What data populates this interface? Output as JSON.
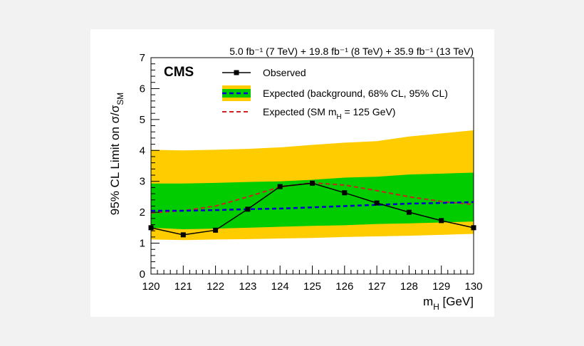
{
  "chart_data": {
    "type": "line",
    "title": "",
    "header": "5.0 fb⁻¹ (7 TeV) + 19.8 fb⁻¹ (8 TeV) + 35.9 fb⁻¹ (13 TeV)",
    "experiment_label": "CMS",
    "xlabel": "m_H [GeV]",
    "ylabel": "95% CL Limit on σ/σ_SM",
    "xlim": [
      120,
      130
    ],
    "ylim": [
      0,
      7
    ],
    "xticks": [
      120,
      121,
      122,
      123,
      124,
      125,
      126,
      127,
      128,
      129,
      130
    ],
    "yticks": [
      0,
      1,
      2,
      3,
      4,
      5,
      6,
      7
    ],
    "grid": false,
    "legend_position": "top",
    "legend": [
      {
        "label": "Observed",
        "style": "line-with-square-markers",
        "color": "#000000"
      },
      {
        "label": "Expected (background, 68% CL, 95% CL)",
        "style": "dashed-with-bands",
        "color": "#0000cc",
        "band68_color": "#00cc00",
        "band95_color": "#ffcc00"
      },
      {
        "label": "Expected (SM m_H = 125 GeV)",
        "style": "dashed",
        "color": "#cc2222"
      }
    ],
    "x": [
      120,
      121,
      122,
      123,
      124,
      125,
      126,
      127,
      128,
      129,
      130
    ],
    "series": [
      {
        "name": "Observed",
        "values": [
          1.5,
          1.27,
          1.42,
          2.1,
          2.83,
          2.94,
          2.63,
          2.3,
          2.0,
          1.73,
          1.5
        ]
      },
      {
        "name": "Expected (background, 68% CL, 95% CL)",
        "values": [
          2.05,
          2.05,
          2.07,
          2.1,
          2.12,
          2.16,
          2.2,
          2.24,
          2.28,
          2.3,
          2.33
        ]
      },
      {
        "name": "Expected (SM m_H = 125 GeV)",
        "values": [
          1.98,
          2.05,
          2.2,
          2.5,
          2.82,
          2.95,
          2.88,
          2.7,
          2.5,
          2.35,
          2.25
        ]
      }
    ],
    "bands": {
      "band95_upper": [
        4.02,
        4.0,
        4.02,
        4.05,
        4.1,
        4.18,
        4.25,
        4.3,
        4.45,
        4.55,
        4.65
      ],
      "band68_upper": [
        2.93,
        2.93,
        2.95,
        2.98,
        3.0,
        3.05,
        3.12,
        3.15,
        3.22,
        3.25,
        3.28
      ],
      "band68_lower": [
        1.5,
        1.45,
        1.47,
        1.5,
        1.53,
        1.56,
        1.58,
        1.62,
        1.64,
        1.67,
        1.7
      ],
      "band95_lower": [
        1.12,
        1.1,
        1.12,
        1.13,
        1.15,
        1.17,
        1.2,
        1.22,
        1.24,
        1.27,
        1.3
      ]
    }
  }
}
